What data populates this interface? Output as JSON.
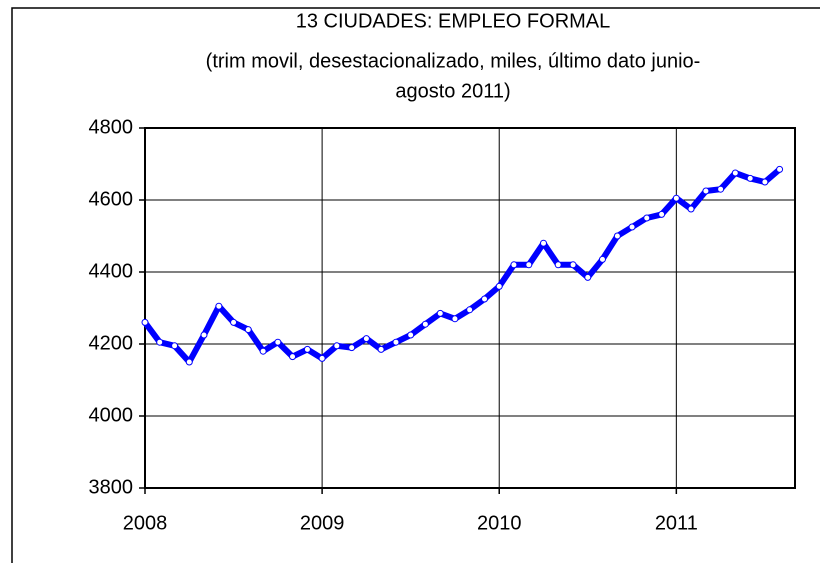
{
  "chart_data": {
    "type": "line",
    "title": [
      "13 CIUDADES: EMPLEO FORMAL",
      "(trim movil, desestacionalizado, miles, último  dato junio-",
      "agosto 2011)"
    ],
    "x": [
      2008,
      2008.083,
      2008.167,
      2008.25,
      2008.333,
      2008.417,
      2008.5,
      2008.583,
      2008.667,
      2008.75,
      2008.833,
      2008.917,
      2009,
      2009.083,
      2009.167,
      2009.25,
      2009.333,
      2009.417,
      2009.5,
      2009.583,
      2009.667,
      2009.75,
      2009.833,
      2009.917,
      2010,
      2010.083,
      2010.167,
      2010.25,
      2010.333,
      2010.417,
      2010.5,
      2010.583,
      2010.667,
      2010.75,
      2010.833,
      2010.917,
      2011,
      2011.083,
      2011.167,
      2011.25,
      2011.333,
      2011.417,
      2011.5,
      2011.583
    ],
    "values": [
      4260,
      4205,
      4195,
      4150,
      4225,
      4305,
      4260,
      4240,
      4180,
      4205,
      4165,
      4185,
      4160,
      4195,
      4190,
      4215,
      4185,
      4205,
      4225,
      4255,
      4285,
      4270,
      4295,
      4325,
      4360,
      4420,
      4420,
      4480,
      4420,
      4420,
      4385,
      4435,
      4500,
      4525,
      4550,
      4560,
      4605,
      4575,
      4625,
      4630,
      4675,
      4660,
      4650,
      4685
    ],
    "color": "#0000ff",
    "xlim": [
      2008,
      2011.67
    ],
    "xticks": [
      2008,
      2009,
      2010,
      2011
    ],
    "ylim": [
      3800,
      4800
    ],
    "yticks": [
      3800,
      4000,
      4200,
      4400,
      4600,
      4800
    ],
    "grid": true
  }
}
